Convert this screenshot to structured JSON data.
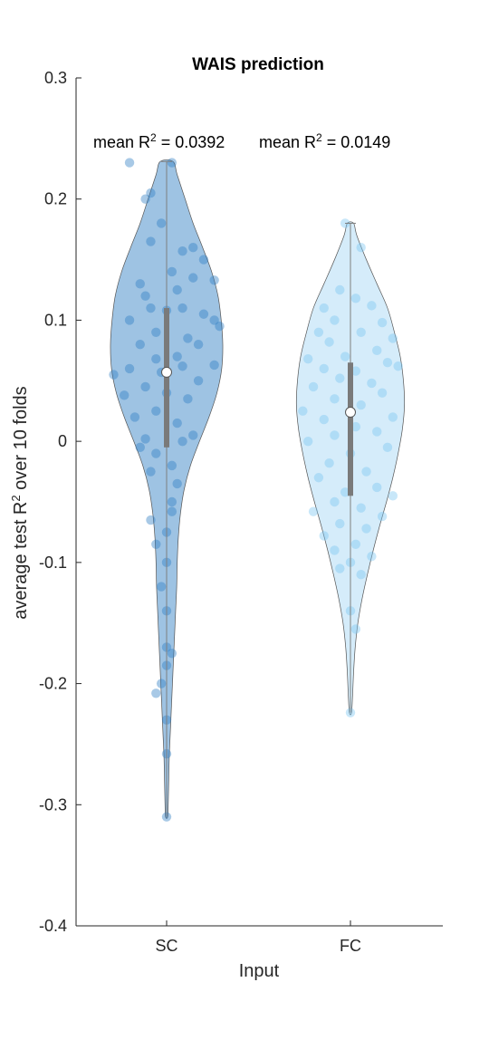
{
  "chart_data": {
    "type": "violin",
    "title": "WAIS prediction",
    "xlabel": "Input",
    "ylabel_parts": {
      "before": "average test R",
      "sup": "2",
      "after": " over 10 folds"
    },
    "ylim": [
      -0.4,
      0.3
    ],
    "yticks": [
      0.3,
      0.2,
      0.1,
      0,
      -0.1,
      -0.2,
      -0.3,
      -0.4
    ],
    "ytick_labels": [
      "0.3",
      "0.2",
      "0.1",
      "0",
      "-0.1",
      "-0.2",
      "-0.3",
      "-0.4"
    ],
    "categories": [
      "SC",
      "FC"
    ],
    "grid": false,
    "annotations": [
      {
        "category": "SC",
        "prefix": "mean R",
        "sup": "2",
        "suffix": " = 0.0392"
      },
      {
        "category": "FC",
        "prefix": "mean R",
        "sup": "2",
        "suffix": " = 0.0149"
      }
    ],
    "series": [
      {
        "category": "SC",
        "fill": "#4f92cc",
        "point_color": "#2f7fc4",
        "median": 0.057,
        "q1": -0.005,
        "q3": 0.11,
        "min": -0.31,
        "max": 0.231,
        "density": [
          [
            0.231,
            0.012
          ],
          [
            0.22,
            0.02
          ],
          [
            0.2,
            0.035
          ],
          [
            0.18,
            0.05
          ],
          [
            0.16,
            0.068
          ],
          [
            0.14,
            0.085
          ],
          [
            0.12,
            0.097
          ],
          [
            0.1,
            0.103
          ],
          [
            0.08,
            0.106
          ],
          [
            0.06,
            0.104
          ],
          [
            0.04,
            0.095
          ],
          [
            0.02,
            0.08
          ],
          [
            0.0,
            0.062
          ],
          [
            -0.02,
            0.045
          ],
          [
            -0.04,
            0.033
          ],
          [
            -0.06,
            0.026
          ],
          [
            -0.08,
            0.022
          ],
          [
            -0.1,
            0.02
          ],
          [
            -0.12,
            0.019
          ],
          [
            -0.14,
            0.017
          ],
          [
            -0.16,
            0.015
          ],
          [
            -0.18,
            0.013
          ],
          [
            -0.2,
            0.011
          ],
          [
            -0.22,
            0.009
          ],
          [
            -0.24,
            0.007
          ],
          [
            -0.26,
            0.005
          ],
          [
            -0.28,
            0.004
          ],
          [
            -0.3,
            0.003
          ],
          [
            -0.31,
            0.002
          ]
        ],
        "points": [
          [
            -0.07,
            0.23
          ],
          [
            0.01,
            0.23
          ],
          [
            -0.03,
            0.205
          ],
          [
            -0.04,
            0.2
          ],
          [
            -0.01,
            0.18
          ],
          [
            -0.03,
            0.165
          ],
          [
            0.05,
            0.16
          ],
          [
            0.03,
            0.157
          ],
          [
            0.07,
            0.15
          ],
          [
            0.01,
            0.14
          ],
          [
            0.05,
            0.135
          ],
          [
            -0.05,
            0.13
          ],
          [
            0.09,
            0.133
          ],
          [
            0.02,
            0.125
          ],
          [
            -0.04,
            0.12
          ],
          [
            -0.03,
            0.11
          ],
          [
            0.0,
            0.108
          ],
          [
            0.03,
            0.11
          ],
          [
            0.07,
            0.105
          ],
          [
            -0.07,
            0.1
          ],
          [
            0.09,
            0.1
          ],
          [
            -0.02,
            0.09
          ],
          [
            0.1,
            0.095
          ],
          [
            0.04,
            0.085
          ],
          [
            -0.05,
            0.08
          ],
          [
            0.06,
            0.08
          ],
          [
            0.02,
            0.07
          ],
          [
            -0.02,
            0.068
          ],
          [
            0.09,
            0.063
          ],
          [
            -0.07,
            0.06
          ],
          [
            -0.01,
            0.057
          ],
          [
            0.03,
            0.062
          ],
          [
            -0.1,
            0.055
          ],
          [
            0.06,
            0.05
          ],
          [
            -0.04,
            0.045
          ],
          [
            0.0,
            0.04
          ],
          [
            -0.08,
            0.038
          ],
          [
            0.04,
            0.035
          ],
          [
            -0.02,
            0.025
          ],
          [
            -0.06,
            0.02
          ],
          [
            0.02,
            0.015
          ],
          [
            0.05,
            0.005
          ],
          [
            -0.04,
            0.002
          ],
          [
            0.03,
            0.0
          ],
          [
            -0.05,
            -0.005
          ],
          [
            -0.02,
            -0.01
          ],
          [
            0.01,
            -0.02
          ],
          [
            -0.03,
            -0.025
          ],
          [
            0.02,
            -0.035
          ],
          [
            0.01,
            -0.05
          ],
          [
            0.01,
            -0.058
          ],
          [
            -0.03,
            -0.065
          ],
          [
            0.0,
            -0.075
          ],
          [
            -0.02,
            -0.085
          ],
          [
            0.0,
            -0.1
          ],
          [
            -0.01,
            -0.12
          ],
          [
            0.0,
            -0.14
          ],
          [
            0.0,
            -0.17
          ],
          [
            0.01,
            -0.175
          ],
          [
            0.0,
            -0.185
          ],
          [
            -0.01,
            -0.2
          ],
          [
            -0.02,
            -0.208
          ],
          [
            0.0,
            -0.23
          ],
          [
            0.0,
            -0.258
          ],
          [
            0.0,
            -0.31
          ]
        ]
      },
      {
        "category": "FC",
        "fill": "#b3dcf5",
        "point_color": "#7cc6f0",
        "median": 0.024,
        "q1": -0.045,
        "q3": 0.065,
        "min": -0.224,
        "max": 0.18,
        "density": [
          [
            0.18,
            0.006
          ],
          [
            0.17,
            0.012
          ],
          [
            0.15,
            0.03
          ],
          [
            0.13,
            0.05
          ],
          [
            0.11,
            0.07
          ],
          [
            0.09,
            0.083
          ],
          [
            0.07,
            0.094
          ],
          [
            0.05,
            0.1
          ],
          [
            0.03,
            0.102
          ],
          [
            0.01,
            0.098
          ],
          [
            -0.01,
            0.09
          ],
          [
            -0.03,
            0.08
          ],
          [
            -0.05,
            0.068
          ],
          [
            -0.07,
            0.055
          ],
          [
            -0.09,
            0.043
          ],
          [
            -0.11,
            0.032
          ],
          [
            -0.13,
            0.022
          ],
          [
            -0.15,
            0.014
          ],
          [
            -0.17,
            0.009
          ],
          [
            -0.19,
            0.006
          ],
          [
            -0.21,
            0.004
          ],
          [
            -0.224,
            0.002
          ]
        ],
        "points": [
          [
            -0.01,
            0.18
          ],
          [
            0.02,
            0.16
          ],
          [
            -0.02,
            0.125
          ],
          [
            0.01,
            0.118
          ],
          [
            -0.05,
            0.11
          ],
          [
            0.04,
            0.112
          ],
          [
            -0.03,
            0.1
          ],
          [
            0.06,
            0.098
          ],
          [
            -0.06,
            0.09
          ],
          [
            0.02,
            0.09
          ],
          [
            0.08,
            0.085
          ],
          [
            -0.04,
            0.082
          ],
          [
            0.05,
            0.075
          ],
          [
            -0.01,
            0.07
          ],
          [
            -0.08,
            0.068
          ],
          [
            0.07,
            0.065
          ],
          [
            0.09,
            0.062
          ],
          [
            -0.05,
            0.06
          ],
          [
            0.01,
            0.058
          ],
          [
            -0.02,
            0.052
          ],
          [
            0.04,
            0.048
          ],
          [
            -0.07,
            0.045
          ],
          [
            0.06,
            0.04
          ],
          [
            -0.03,
            0.035
          ],
          [
            0.02,
            0.03
          ],
          [
            -0.09,
            0.025
          ],
          [
            0.08,
            0.02
          ],
          [
            -0.05,
            0.018
          ],
          [
            0.01,
            0.012
          ],
          [
            0.05,
            0.008
          ],
          [
            -0.03,
            0.005
          ],
          [
            -0.08,
            0.0
          ],
          [
            0.07,
            -0.005
          ],
          [
            0.0,
            -0.01
          ],
          [
            -0.04,
            -0.018
          ],
          [
            0.03,
            -0.025
          ],
          [
            -0.06,
            -0.03
          ],
          [
            0.05,
            -0.038
          ],
          [
            -0.01,
            -0.042
          ],
          [
            0.08,
            -0.045
          ],
          [
            -0.03,
            -0.05
          ],
          [
            0.02,
            -0.055
          ],
          [
            -0.07,
            -0.058
          ],
          [
            0.06,
            -0.062
          ],
          [
            -0.02,
            -0.068
          ],
          [
            0.03,
            -0.072
          ],
          [
            -0.05,
            -0.078
          ],
          [
            0.01,
            -0.085
          ],
          [
            -0.03,
            -0.09
          ],
          [
            0.04,
            -0.095
          ],
          [
            0.0,
            -0.1
          ],
          [
            -0.02,
            -0.105
          ],
          [
            0.02,
            -0.11
          ],
          [
            0.0,
            -0.14
          ],
          [
            0.01,
            -0.155
          ],
          [
            0.0,
            -0.224
          ]
        ]
      }
    ]
  }
}
